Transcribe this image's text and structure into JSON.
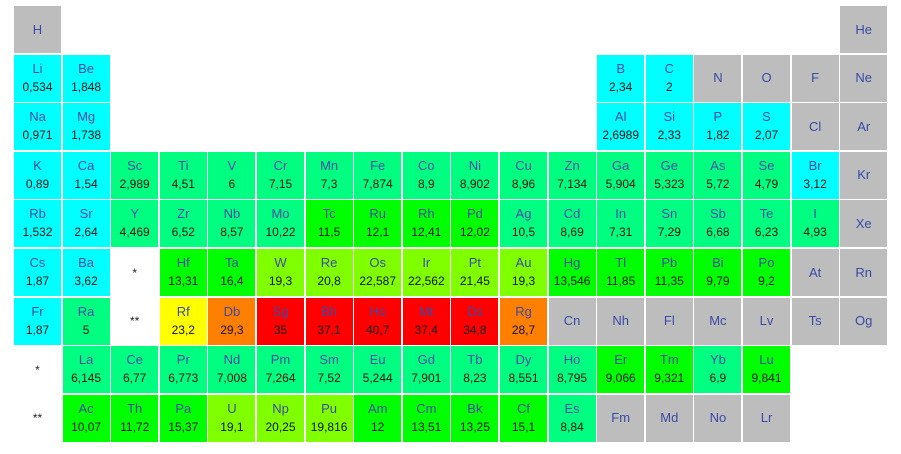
{
  "colors": {
    "gray": "#bdbdbd",
    "cyan": "#00ffff",
    "spring": "#00ff80",
    "green": "#00ff00",
    "lime": "#80ff00",
    "yellow": "#ffff00",
    "orange": "#ff8000",
    "red": "#ff0000",
    "marker": "#ffffff"
  },
  "cells": [
    {
      "sym": "H",
      "r": 0,
      "c": 0,
      "color": "gray"
    },
    {
      "sym": "He",
      "r": 0,
      "c": 17,
      "color": "gray"
    },
    {
      "sym": "Li",
      "val": "0,534",
      "r": 1,
      "c": 0,
      "color": "cyan"
    },
    {
      "sym": "Be",
      "val": "1,848",
      "r": 1,
      "c": 1,
      "color": "cyan"
    },
    {
      "sym": "B",
      "val": "2,34",
      "r": 1,
      "c": 12,
      "color": "cyan"
    },
    {
      "sym": "C",
      "val": "2",
      "r": 1,
      "c": 13,
      "color": "cyan"
    },
    {
      "sym": "N",
      "r": 1,
      "c": 14,
      "color": "gray"
    },
    {
      "sym": "O",
      "r": 1,
      "c": 15,
      "color": "gray"
    },
    {
      "sym": "F",
      "r": 1,
      "c": 16,
      "color": "gray"
    },
    {
      "sym": "Ne",
      "r": 1,
      "c": 17,
      "color": "gray"
    },
    {
      "sym": "Na",
      "val": "0,971",
      "r": 2,
      "c": 0,
      "color": "cyan"
    },
    {
      "sym": "Mg",
      "val": "1,738",
      "r": 2,
      "c": 1,
      "color": "cyan"
    },
    {
      "sym": "Al",
      "val": "2,6989",
      "r": 2,
      "c": 12,
      "color": "cyan"
    },
    {
      "sym": "Si",
      "val": "2,33",
      "r": 2,
      "c": 13,
      "color": "cyan"
    },
    {
      "sym": "P",
      "val": "1,82",
      "r": 2,
      "c": 14,
      "color": "cyan"
    },
    {
      "sym": "S",
      "val": "2,07",
      "r": 2,
      "c": 15,
      "color": "cyan"
    },
    {
      "sym": "Cl",
      "r": 2,
      "c": 16,
      "color": "gray"
    },
    {
      "sym": "Ar",
      "r": 2,
      "c": 17,
      "color": "gray"
    },
    {
      "sym": "K",
      "val": "0,89",
      "r": 3,
      "c": 0,
      "color": "cyan"
    },
    {
      "sym": "Ca",
      "val": "1,54",
      "r": 3,
      "c": 1,
      "color": "cyan"
    },
    {
      "sym": "Sc",
      "val": "2,989",
      "r": 3,
      "c": 2,
      "color": "spring"
    },
    {
      "sym": "Ti",
      "val": "4,51",
      "r": 3,
      "c": 3,
      "color": "spring"
    },
    {
      "sym": "V",
      "val": "6",
      "r": 3,
      "c": 4,
      "color": "spring"
    },
    {
      "sym": "Cr",
      "val": "7,15",
      "r": 3,
      "c": 5,
      "color": "spring"
    },
    {
      "sym": "Mn",
      "val": "7,3",
      "r": 3,
      "c": 6,
      "color": "spring"
    },
    {
      "sym": "Fe",
      "val": "7,874",
      "r": 3,
      "c": 7,
      "color": "spring"
    },
    {
      "sym": "Co",
      "val": "8,9",
      "r": 3,
      "c": 8,
      "color": "spring"
    },
    {
      "sym": "Ni",
      "val": "8,902",
      "r": 3,
      "c": 9,
      "color": "spring"
    },
    {
      "sym": "Cu",
      "val": "8,96",
      "r": 3,
      "c": 10,
      "color": "spring"
    },
    {
      "sym": "Zn",
      "val": "7,134",
      "r": 3,
      "c": 11,
      "color": "spring"
    },
    {
      "sym": "Ga",
      "val": "5,904",
      "r": 3,
      "c": 12,
      "color": "spring"
    },
    {
      "sym": "Ge",
      "val": "5,323",
      "r": 3,
      "c": 13,
      "color": "spring"
    },
    {
      "sym": "As",
      "val": "5,72",
      "r": 3,
      "c": 14,
      "color": "spring"
    },
    {
      "sym": "Se",
      "val": "4,79",
      "r": 3,
      "c": 15,
      "color": "spring"
    },
    {
      "sym": "Br",
      "val": "3,12",
      "r": 3,
      "c": 16,
      "color": "cyan"
    },
    {
      "sym": "Kr",
      "r": 3,
      "c": 17,
      "color": "gray"
    },
    {
      "sym": "Rb",
      "val": "1,532",
      "r": 4,
      "c": 0,
      "color": "cyan"
    },
    {
      "sym": "Sr",
      "val": "2,64",
      "r": 4,
      "c": 1,
      "color": "cyan"
    },
    {
      "sym": "Y",
      "val": "4,469",
      "r": 4,
      "c": 2,
      "color": "spring"
    },
    {
      "sym": "Zr",
      "val": "6,52",
      "r": 4,
      "c": 3,
      "color": "spring"
    },
    {
      "sym": "Nb",
      "val": "8,57",
      "r": 4,
      "c": 4,
      "color": "spring"
    },
    {
      "sym": "Mo",
      "val": "10,22",
      "r": 4,
      "c": 5,
      "color": "spring"
    },
    {
      "sym": "Tc",
      "val": "11,5",
      "r": 4,
      "c": 6,
      "color": "green"
    },
    {
      "sym": "Ru",
      "val": "12,1",
      "r": 4,
      "c": 7,
      "color": "green"
    },
    {
      "sym": "Rh",
      "val": "12,41",
      "r": 4,
      "c": 8,
      "color": "green"
    },
    {
      "sym": "Pd",
      "val": "12,02",
      "r": 4,
      "c": 9,
      "color": "green"
    },
    {
      "sym": "Ag",
      "val": "10,5",
      "r": 4,
      "c": 10,
      "color": "spring"
    },
    {
      "sym": "Cd",
      "val": "8,69",
      "r": 4,
      "c": 11,
      "color": "spring"
    },
    {
      "sym": "In",
      "val": "7,31",
      "r": 4,
      "c": 12,
      "color": "spring"
    },
    {
      "sym": "Sn",
      "val": "7,29",
      "r": 4,
      "c": 13,
      "color": "spring"
    },
    {
      "sym": "Sb",
      "val": "6,68",
      "r": 4,
      "c": 14,
      "color": "spring"
    },
    {
      "sym": "Te",
      "val": "6,23",
      "r": 4,
      "c": 15,
      "color": "spring"
    },
    {
      "sym": "I",
      "val": "4,93",
      "r": 4,
      "c": 16,
      "color": "spring"
    },
    {
      "sym": "Xe",
      "r": 4,
      "c": 17,
      "color": "gray"
    },
    {
      "sym": "Cs",
      "val": "1,87",
      "r": 5,
      "c": 0,
      "color": "cyan"
    },
    {
      "sym": "Ba",
      "val": "3,62",
      "r": 5,
      "c": 1,
      "color": "cyan"
    },
    {
      "marker": "*",
      "r": 5,
      "c": 2,
      "color": "marker"
    },
    {
      "sym": "Hf",
      "val": "13,31",
      "r": 5,
      "c": 3,
      "color": "green"
    },
    {
      "sym": "Ta",
      "val": "16,4",
      "r": 5,
      "c": 4,
      "color": "green"
    },
    {
      "sym": "W",
      "val": "19,3",
      "r": 5,
      "c": 5,
      "color": "lime"
    },
    {
      "sym": "Re",
      "val": "20,8",
      "r": 5,
      "c": 6,
      "color": "lime"
    },
    {
      "sym": "Os",
      "val": "22,587",
      "r": 5,
      "c": 7,
      "color": "lime"
    },
    {
      "sym": "Ir",
      "val": "22,562",
      "r": 5,
      "c": 8,
      "color": "lime"
    },
    {
      "sym": "Pt",
      "val": "21,45",
      "r": 5,
      "c": 9,
      "color": "lime"
    },
    {
      "sym": "Au",
      "val": "19,3",
      "r": 5,
      "c": 10,
      "color": "lime"
    },
    {
      "sym": "Hg",
      "val": "13,546",
      "r": 5,
      "c": 11,
      "color": "green"
    },
    {
      "sym": "Tl",
      "val": "11,85",
      "r": 5,
      "c": 12,
      "color": "green"
    },
    {
      "sym": "Pb",
      "val": "11,35",
      "r": 5,
      "c": 13,
      "color": "green"
    },
    {
      "sym": "Bi",
      "val": "9,79",
      "r": 5,
      "c": 14,
      "color": "green"
    },
    {
      "sym": "Po",
      "val": "9,2",
      "r": 5,
      "c": 15,
      "color": "green"
    },
    {
      "sym": "At",
      "r": 5,
      "c": 16,
      "color": "gray"
    },
    {
      "sym": "Rn",
      "r": 5,
      "c": 17,
      "color": "gray"
    },
    {
      "sym": "Fr",
      "val": "1,87",
      "r": 6,
      "c": 0,
      "color": "cyan"
    },
    {
      "sym": "Ra",
      "val": "5",
      "r": 6,
      "c": 1,
      "color": "spring"
    },
    {
      "marker": "**",
      "r": 6,
      "c": 2,
      "color": "marker"
    },
    {
      "sym": "Rf",
      "val": "23,2",
      "r": 6,
      "c": 3,
      "color": "yellow"
    },
    {
      "sym": "Db",
      "val": "29,3",
      "r": 6,
      "c": 4,
      "color": "orange"
    },
    {
      "sym": "Sg",
      "val": "35",
      "r": 6,
      "c": 5,
      "color": "red"
    },
    {
      "sym": "Bh",
      "val": "37,1",
      "r": 6,
      "c": 6,
      "color": "red"
    },
    {
      "sym": "Hs",
      "val": "40,7",
      "r": 6,
      "c": 7,
      "color": "red"
    },
    {
      "sym": "Mt",
      "val": "37,4",
      "r": 6,
      "c": 8,
      "color": "red"
    },
    {
      "sym": "Ds",
      "val": "34,8",
      "r": 6,
      "c": 9,
      "color": "red"
    },
    {
      "sym": "Rg",
      "val": "28,7",
      "r": 6,
      "c": 10,
      "color": "orange"
    },
    {
      "sym": "Cn",
      "r": 6,
      "c": 11,
      "color": "gray"
    },
    {
      "sym": "Nh",
      "r": 6,
      "c": 12,
      "color": "gray"
    },
    {
      "sym": "Fl",
      "r": 6,
      "c": 13,
      "color": "gray"
    },
    {
      "sym": "Mc",
      "r": 6,
      "c": 14,
      "color": "gray"
    },
    {
      "sym": "Lv",
      "r": 6,
      "c": 15,
      "color": "gray"
    },
    {
      "sym": "Ts",
      "r": 6,
      "c": 16,
      "color": "gray"
    },
    {
      "sym": "Og",
      "r": 6,
      "c": 17,
      "color": "gray"
    },
    {
      "marker": "*",
      "r": 7,
      "c": 0,
      "color": "marker"
    },
    {
      "sym": "La",
      "val": "6,145",
      "r": 7,
      "c": 1,
      "color": "spring"
    },
    {
      "sym": "Ce",
      "val": "6,77",
      "r": 7,
      "c": 2,
      "color": "spring"
    },
    {
      "sym": "Pr",
      "val": "6,773",
      "r": 7,
      "c": 3,
      "color": "spring"
    },
    {
      "sym": "Nd",
      "val": "7,008",
      "r": 7,
      "c": 4,
      "color": "spring"
    },
    {
      "sym": "Pm",
      "val": "7,264",
      "r": 7,
      "c": 5,
      "color": "spring"
    },
    {
      "sym": "Sm",
      "val": "7,52",
      "r": 7,
      "c": 6,
      "color": "spring"
    },
    {
      "sym": "Eu",
      "val": "5,244",
      "r": 7,
      "c": 7,
      "color": "spring"
    },
    {
      "sym": "Gd",
      "val": "7,901",
      "r": 7,
      "c": 8,
      "color": "spring"
    },
    {
      "sym": "Tb",
      "val": "8,23",
      "r": 7,
      "c": 9,
      "color": "spring"
    },
    {
      "sym": "Dy",
      "val": "8,551",
      "r": 7,
      "c": 10,
      "color": "spring"
    },
    {
      "sym": "Ho",
      "val": "8,795",
      "r": 7,
      "c": 11,
      "color": "spring"
    },
    {
      "sym": "Er",
      "val": "9,066",
      "r": 7,
      "c": 12,
      "color": "green"
    },
    {
      "sym": "Tm",
      "val": "9,321",
      "r": 7,
      "c": 13,
      "color": "green"
    },
    {
      "sym": "Yb",
      "val": "6,9",
      "r": 7,
      "c": 14,
      "color": "spring"
    },
    {
      "sym": "Lu",
      "val": "9,841",
      "r": 7,
      "c": 15,
      "color": "green"
    },
    {
      "marker": "**",
      "r": 8,
      "c": 0,
      "color": "marker"
    },
    {
      "sym": "Ac",
      "val": "10,07",
      "r": 8,
      "c": 1,
      "color": "green"
    },
    {
      "sym": "Th",
      "val": "11,72",
      "r": 8,
      "c": 2,
      "color": "green"
    },
    {
      "sym": "Pa",
      "val": "15,37",
      "r": 8,
      "c": 3,
      "color": "green"
    },
    {
      "sym": "U",
      "val": "19,1",
      "r": 8,
      "c": 4,
      "color": "lime"
    },
    {
      "sym": "Np",
      "val": "20,25",
      "r": 8,
      "c": 5,
      "color": "lime"
    },
    {
      "sym": "Pu",
      "val": "19,816",
      "r": 8,
      "c": 6,
      "color": "lime"
    },
    {
      "sym": "Am",
      "val": "12",
      "r": 8,
      "c": 7,
      "color": "green"
    },
    {
      "sym": "Cm",
      "val": "13,51",
      "r": 8,
      "c": 8,
      "color": "green"
    },
    {
      "sym": "Bk",
      "val": "13,25",
      "r": 8,
      "c": 9,
      "color": "green"
    },
    {
      "sym": "Cf",
      "val": "15,1",
      "r": 8,
      "c": 10,
      "color": "green"
    },
    {
      "sym": "Es",
      "val": "8,84",
      "r": 8,
      "c": 11,
      "color": "spring"
    },
    {
      "sym": "Fm",
      "r": 8,
      "c": 12,
      "color": "gray"
    },
    {
      "sym": "Md",
      "r": 8,
      "c": 13,
      "color": "gray"
    },
    {
      "sym": "No",
      "r": 8,
      "c": 14,
      "color": "gray"
    },
    {
      "sym": "Lr",
      "r": 8,
      "c": 15,
      "color": "gray"
    }
  ]
}
